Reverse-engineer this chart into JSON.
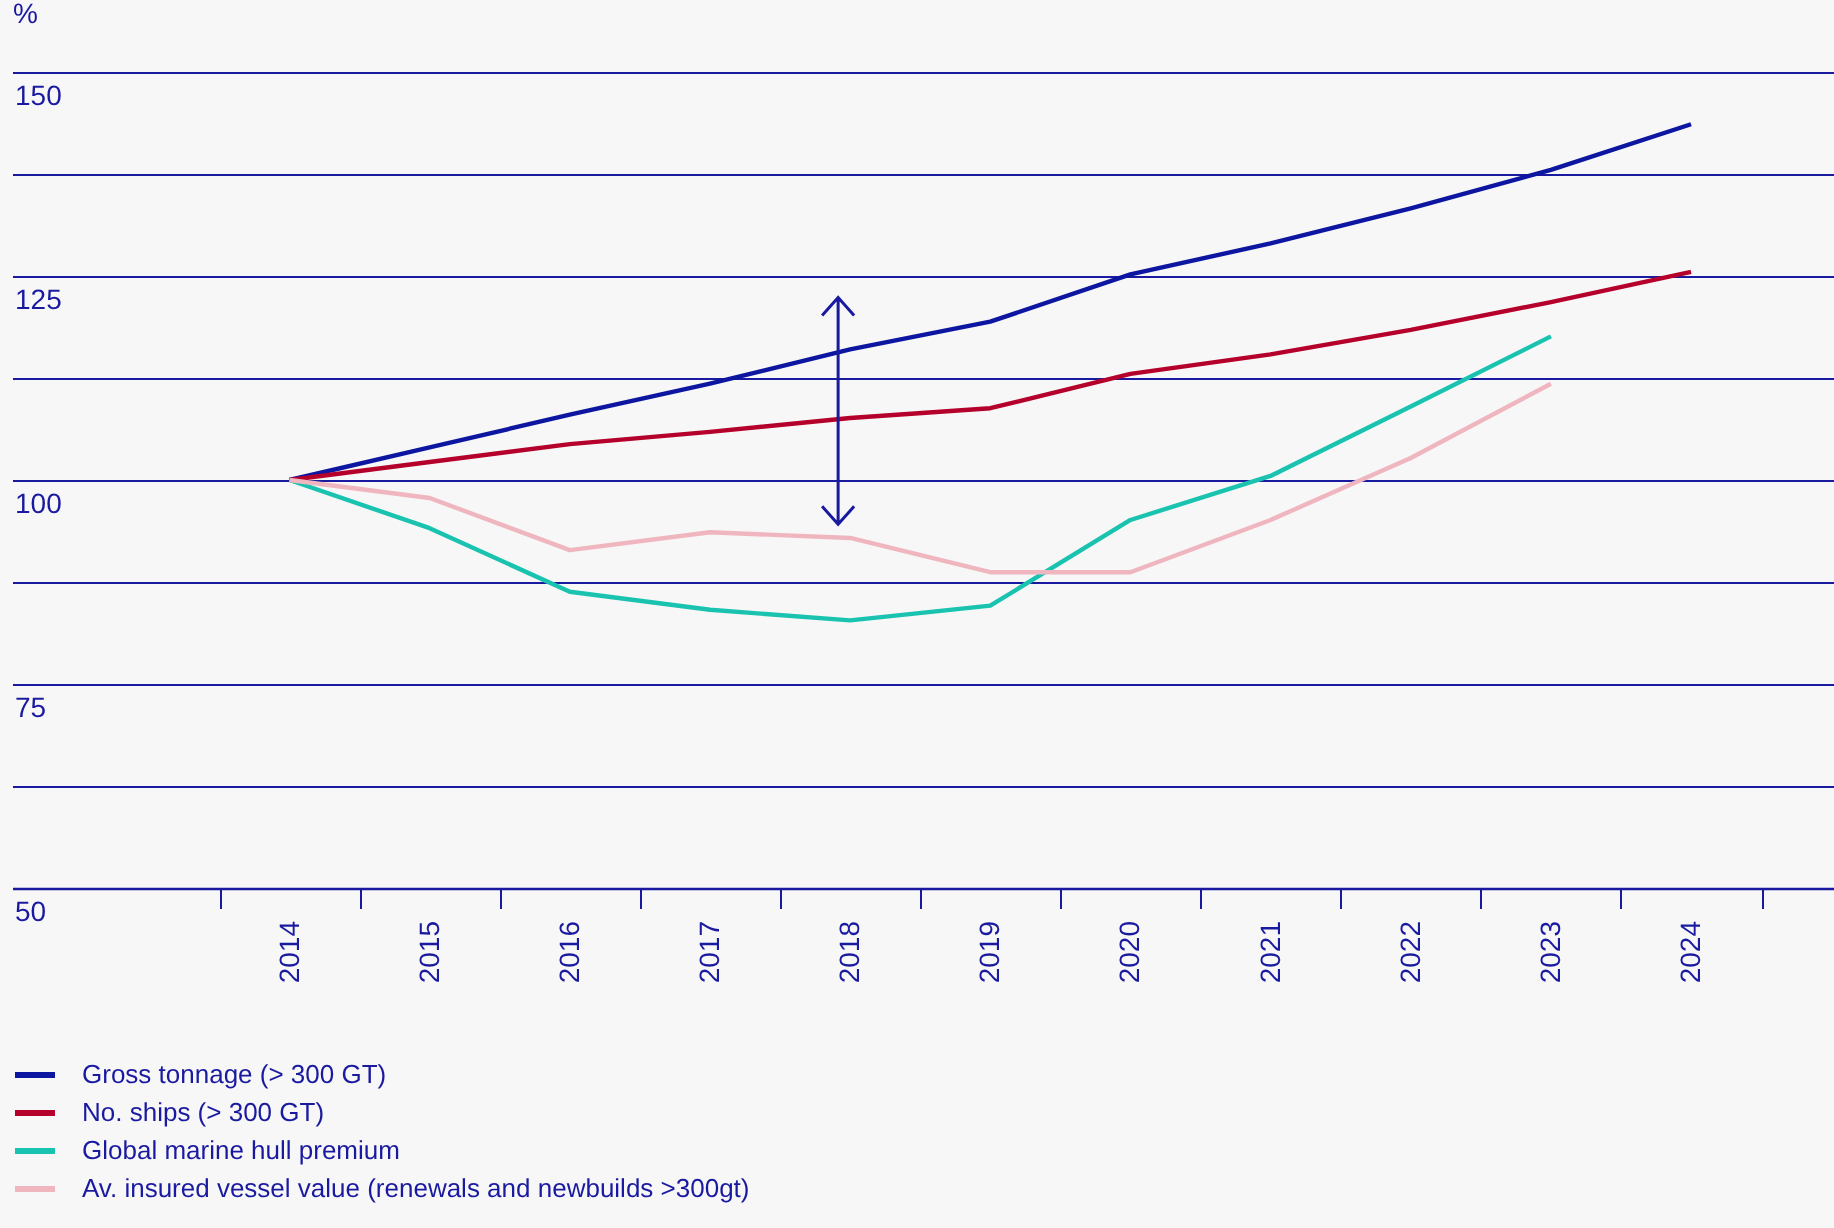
{
  "chart_data": {
    "type": "line",
    "ylabel": "%",
    "categories": [
      "2014",
      "2015",
      "2016",
      "2017",
      "2018",
      "2019",
      "2020",
      "2021",
      "2022",
      "2023",
      "2024"
    ],
    "series": [
      {
        "name": "Gross tonnage (> 300 GT)",
        "color": "#0d16a0",
        "values": [
          100,
          104,
          108,
          111.8,
          116,
          119.4,
          125.2,
          129,
          133.3,
          138,
          143.6
        ]
      },
      {
        "name": "No. ships (> 300 GT)",
        "color": "#b5002c",
        "values": [
          100,
          102.2,
          104.4,
          105.9,
          107.6,
          108.8,
          113,
          115.4,
          118.4,
          121.8,
          125.5
        ]
      },
      {
        "name": "Global marine hull premium",
        "color": "#19c3b0",
        "values": [
          100,
          94.1,
          86.3,
          84.1,
          82.8,
          84.6,
          95.1,
          100.5,
          109,
          117.6,
          null
        ]
      },
      {
        "name": "Av. insured vessel value (renewals and newbuilds >300gt)",
        "color": "#efb6bf",
        "values": [
          100,
          97.8,
          91.4,
          93.6,
          92.9,
          88.7,
          88.7,
          95.1,
          102.7,
          111.8,
          null
        ]
      }
    ],
    "ylim": [
      50,
      150
    ],
    "yticks": [
      50,
      {
        "value": 62.5,
        "label": null
      },
      75,
      {
        "value": 87.5,
        "label": null
      },
      100,
      {
        "value": 112.5,
        "label": null
      },
      125,
      {
        "value": 137.5,
        "label": null
      },
      150
    ],
    "grid": "y",
    "legend": "bottom",
    "marker": "none",
    "line_style": "solid"
  }
}
